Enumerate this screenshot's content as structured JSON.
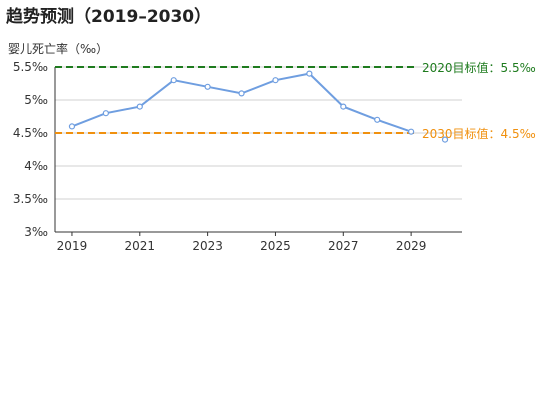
{
  "chart_data": {
    "type": "line",
    "title": "趋势预测（2019–2030）",
    "ylabel": "婴儿死亡率（‰）",
    "xlabel": "",
    "x": [
      2019,
      2020,
      2021,
      2022,
      2023,
      2024,
      2025,
      2026,
      2027,
      2028,
      2029,
      2030
    ],
    "xticks": [
      "2019",
      "2021",
      "2023",
      "2025",
      "2027",
      "2029"
    ],
    "yticks": [
      "3‰",
      "3.5‰",
      "4‰",
      "4.5‰",
      "5‰",
      "5.5‰"
    ],
    "ytick_values": [
      3,
      3.5,
      4,
      4.5,
      5,
      5.5
    ],
    "ylim": [
      3,
      5.5
    ],
    "xlim": [
      2018.5,
      2030.5
    ],
    "grid": true,
    "series": [
      {
        "values": [
          4.6,
          4.8,
          4.9,
          5.3,
          5.2,
          5.1,
          5.3,
          5.4,
          4.9,
          4.7,
          4.52,
          4.4
        ],
        "color": "#6f9ee0"
      }
    ],
    "reference_lines": [
      {
        "value": 5.5,
        "label": "2020目标值：5.5‰",
        "color": "#1e7b1e"
      },
      {
        "value": 4.5,
        "label": "2030目标值：4.5‰",
        "color": "#f0900e"
      }
    ]
  }
}
